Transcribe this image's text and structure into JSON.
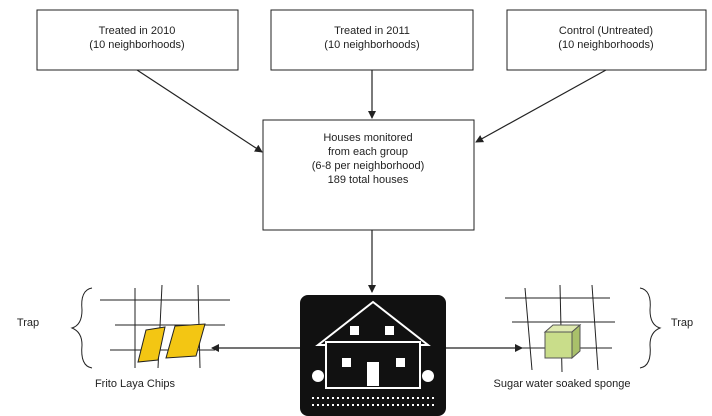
{
  "boxes": [
    {
      "lines": [
        "Treated in 2010",
        "(10 neighborhoods)"
      ]
    },
    {
      "lines": [
        "Treated in 2011",
        "(10 neighborhoods)"
      ]
    },
    {
      "lines": [
        "Control (Untreated)",
        "(10 neighborhoods)"
      ]
    }
  ],
  "center": {
    "lines": [
      "Houses monitored",
      "from each group",
      "(6-8 per neighborhood)",
      "189 total houses"
    ]
  },
  "traps": [
    {
      "label": "Trap",
      "caption": "Frito Laya Chips"
    },
    {
      "label": "Trap",
      "caption": "Sugar water soaked sponge"
    }
  ]
}
